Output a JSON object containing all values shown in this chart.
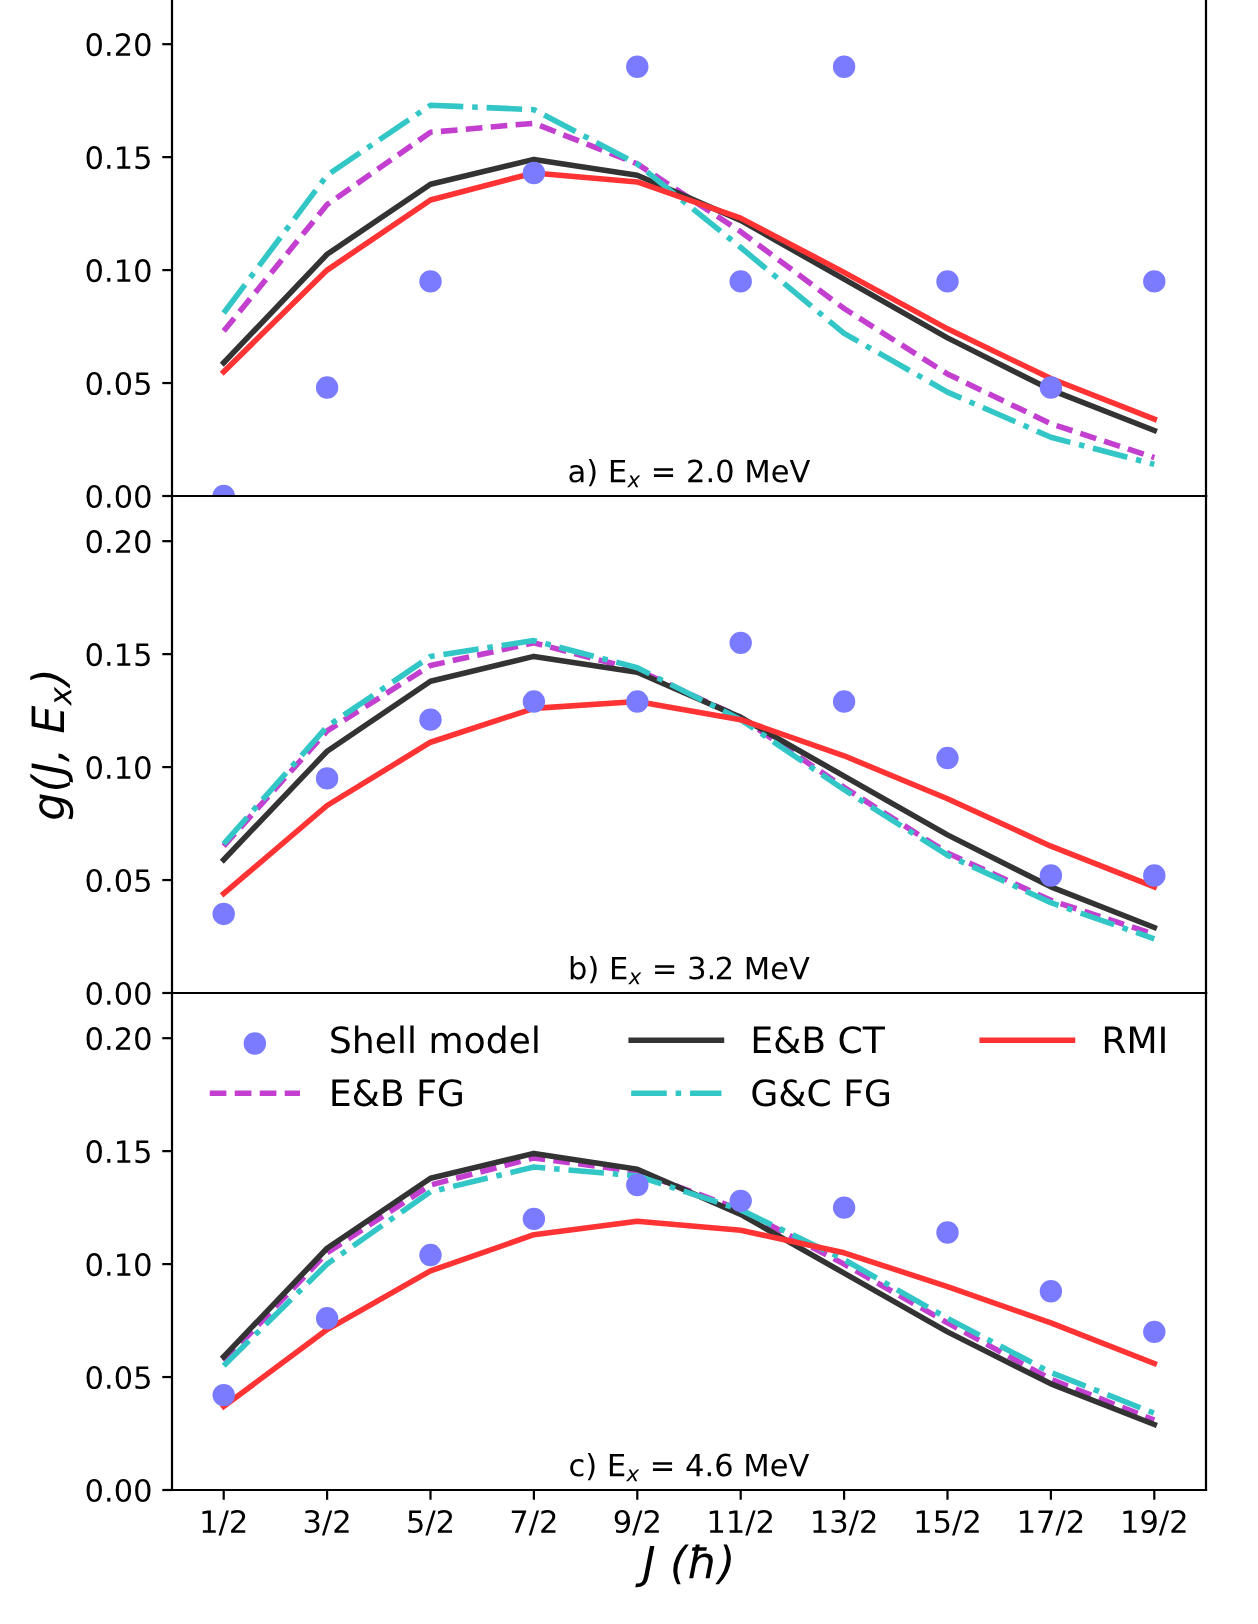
{
  "chart_data": [
    {
      "type": "line",
      "annotations": [
        "a) E$_{x}$ = 2.0 MeV"
      ],
      "x": [
        0.5,
        1.5,
        2.5,
        3.5,
        4.5,
        5.5,
        6.5,
        7.5,
        8.5,
        9.5
      ],
      "xlim": [
        0,
        10
      ],
      "ylim": [
        0,
        0.22
      ],
      "xticks": [
        {
          "value": 0.5,
          "label": null
        },
        {
          "value": 1.5,
          "label": null
        },
        {
          "value": 2.5,
          "label": null
        },
        {
          "value": 3.5,
          "label": null
        },
        {
          "value": 4.5,
          "label": null
        },
        {
          "value": 5.5,
          "label": null
        },
        {
          "value": 6.5,
          "label": null
        },
        {
          "value": 7.5,
          "label": null
        },
        {
          "value": 8.5,
          "label": null
        },
        {
          "value": 9.5,
          "label": null
        }
      ],
      "yticks": [
        {
          "value": 0,
          "label": "0.00"
        },
        {
          "value": 0.05,
          "label": "0.05"
        },
        {
          "value": 0.1,
          "label": "0.10"
        },
        {
          "value": 0.15,
          "label": "0.15"
        },
        {
          "value": 0.2,
          "label": "0.20"
        }
      ],
      "tick_labels": "y",
      "legend": false,
      "grid": false,
      "series": [
        {
          "type": "scatter",
          "marker": "circle",
          "color": "#7b7bff",
          "values": [
            0.0,
            0.048,
            0.095,
            0.143,
            0.19,
            0.095,
            0.19,
            0.095,
            0.048,
            0.095
          ]
        },
        {
          "color": "#c23fd0",
          "line_style": "dashed",
          "values": [
            0.073,
            0.129,
            0.161,
            0.165,
            0.147,
            0.117,
            0.083,
            0.054,
            0.032,
            0.017
          ]
        },
        {
          "color": "#333333",
          "line_style": "solid",
          "values": [
            0.059,
            0.107,
            0.138,
            0.149,
            0.142,
            0.122,
            0.096,
            0.07,
            0.047,
            0.029
          ]
        },
        {
          "color": "#33c6c6",
          "line_style": "dashdot",
          "values": [
            0.081,
            0.142,
            0.173,
            0.171,
            0.147,
            0.11,
            0.072,
            0.046,
            0.026,
            0.014
          ]
        },
        {
          "color": "#ff3333",
          "line_style": "solid",
          "values": [
            0.055,
            0.1,
            0.131,
            0.143,
            0.139,
            0.123,
            0.099,
            0.074,
            0.052,
            0.034
          ]
        }
      ]
    },
    {
      "type": "line",
      "annotations": [
        "b) E$_{x}$ = 3.2 MeV"
      ],
      "ylabel": "g(J, E$_{x}$)",
      "x": [
        0.5,
        1.5,
        2.5,
        3.5,
        4.5,
        5.5,
        6.5,
        7.5,
        8.5,
        9.5
      ],
      "xlim": [
        0,
        10
      ],
      "ylim": [
        0,
        0.22
      ],
      "xticks": [
        {
          "value": 0.5,
          "label": null
        },
        {
          "value": 1.5,
          "label": null
        },
        {
          "value": 2.5,
          "label": null
        },
        {
          "value": 3.5,
          "label": null
        },
        {
          "value": 4.5,
          "label": null
        },
        {
          "value": 5.5,
          "label": null
        },
        {
          "value": 6.5,
          "label": null
        },
        {
          "value": 7.5,
          "label": null
        },
        {
          "value": 8.5,
          "label": null
        },
        {
          "value": 9.5,
          "label": null
        }
      ],
      "yticks": [
        {
          "value": 0,
          "label": "0.00"
        },
        {
          "value": 0.05,
          "label": "0.05"
        },
        {
          "value": 0.1,
          "label": "0.10"
        },
        {
          "value": 0.15,
          "label": "0.15"
        },
        {
          "value": 0.2,
          "label": "0.20"
        }
      ],
      "tick_labels": "y",
      "legend": false,
      "grid": false,
      "series": [
        {
          "type": "scatter",
          "marker": "circle",
          "color": "#7b7bff",
          "values": [
            0.035,
            0.095,
            0.121,
            0.129,
            0.129,
            0.155,
            0.129,
            0.104,
            0.052,
            0.052
          ]
        },
        {
          "color": "#c23fd0",
          "line_style": "dashed",
          "values": [
            0.065,
            0.116,
            0.145,
            0.155,
            0.143,
            0.122,
            0.091,
            0.062,
            0.041,
            0.026
          ]
        },
        {
          "color": "#333333",
          "line_style": "solid",
          "values": [
            0.059,
            0.107,
            0.138,
            0.149,
            0.142,
            0.122,
            0.096,
            0.07,
            0.047,
            0.029
          ]
        },
        {
          "color": "#33c6c6",
          "line_style": "dashdot",
          "values": [
            0.066,
            0.118,
            0.149,
            0.156,
            0.144,
            0.121,
            0.09,
            0.061,
            0.04,
            0.024
          ]
        },
        {
          "color": "#ff3333",
          "line_style": "solid",
          "values": [
            0.044,
            0.083,
            0.111,
            0.126,
            0.129,
            0.121,
            0.105,
            0.086,
            0.065,
            0.047
          ]
        }
      ]
    },
    {
      "type": "line",
      "annotations": [
        "c) E$_{x}$ = 4.6 MeV"
      ],
      "xlabel": "J (ħ)",
      "x": [
        0.5,
        1.5,
        2.5,
        3.5,
        4.5,
        5.5,
        6.5,
        7.5,
        8.5,
        9.5
      ],
      "xlim": [
        0,
        10
      ],
      "ylim": [
        0,
        0.22
      ],
      "xticks": [
        {
          "value": 0.5,
          "label": "1/2"
        },
        {
          "value": 1.5,
          "label": "3/2"
        },
        {
          "value": 2.5,
          "label": "5/2"
        },
        {
          "value": 3.5,
          "label": "7/2"
        },
        {
          "value": 4.5,
          "label": "9/2"
        },
        {
          "value": 5.5,
          "label": "11/2"
        },
        {
          "value": 6.5,
          "label": "13/2"
        },
        {
          "value": 7.5,
          "label": "15/2"
        },
        {
          "value": 8.5,
          "label": "17/2"
        },
        {
          "value": 9.5,
          "label": "19/2"
        }
      ],
      "yticks": [
        {
          "value": 0,
          "label": "0.00"
        },
        {
          "value": 0.05,
          "label": "0.05"
        },
        {
          "value": 0.1,
          "label": "0.10"
        },
        {
          "value": 0.15,
          "label": "0.15"
        },
        {
          "value": 0.2,
          "label": "0.20"
        }
      ],
      "legend": "top",
      "grid": false,
      "series": [
        {
          "name": "Shell model",
          "type": "scatter",
          "marker": "circle",
          "color": "#7b7bff",
          "values": [
            0.042,
            0.076,
            0.104,
            0.12,
            0.135,
            0.128,
            0.125,
            0.114,
            0.088,
            0.07
          ]
        },
        {
          "name": "E&B FG",
          "color": "#c23fd0",
          "line_style": "dashed",
          "values": [
            0.057,
            0.105,
            0.135,
            0.147,
            0.141,
            0.124,
            0.1,
            0.074,
            0.049,
            0.031
          ]
        },
        {
          "name": "E&B CT",
          "color": "#333333",
          "line_style": "solid",
          "values": [
            0.059,
            0.107,
            0.138,
            0.149,
            0.142,
            0.122,
            0.096,
            0.07,
            0.047,
            0.029
          ]
        },
        {
          "name": "G&C FG",
          "color": "#33c6c6",
          "line_style": "dashdot",
          "values": [
            0.055,
            0.1,
            0.132,
            0.143,
            0.139,
            0.124,
            0.102,
            0.076,
            0.052,
            0.034
          ]
        },
        {
          "name": "RMI",
          "color": "#ff3333",
          "line_style": "solid",
          "values": [
            0.037,
            0.071,
            0.097,
            0.113,
            0.119,
            0.115,
            0.105,
            0.09,
            0.074,
            0.056
          ]
        }
      ]
    }
  ]
}
